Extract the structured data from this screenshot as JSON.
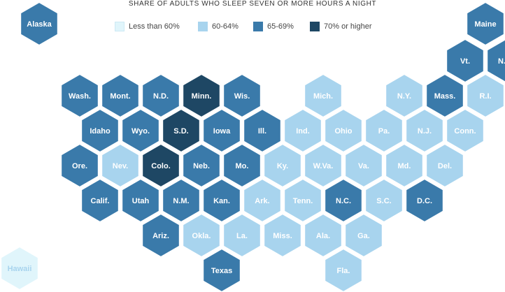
{
  "title": "SHARE OF ADULTS WHO SLEEP SEVEN OR MORE HOURS A NIGHT",
  "legend": [
    {
      "id": "lt60",
      "label": "Less than 60%",
      "color": "#e0f5fb"
    },
    {
      "id": "60-64",
      "label": "60-64%",
      "color": "#a8d4ee"
    },
    {
      "id": "65-69",
      "label": "65-69%",
      "color": "#3a7aaa"
    },
    {
      "id": "70plus",
      "label": "70% or higher",
      "color": "#1e4764"
    }
  ],
  "chart_data": {
    "type": "hexbin-map",
    "title": "SHARE OF ADULTS WHO SLEEP SEVEN OR MORE HOURS A NIGHT",
    "states": [
      {
        "label": "Alaska",
        "category": "65-69%",
        "col": 0,
        "row": 0
      },
      {
        "label": "Maine",
        "category": "65-69%",
        "col": 12,
        "row": 0
      },
      {
        "label": "Vt.",
        "category": "65-69%",
        "col": 10.5,
        "row": 1
      },
      {
        "label": "N.H.",
        "category": "65-69%",
        "col": 11.5,
        "row": 1
      },
      {
        "label": "Wash.",
        "category": "65-69%",
        "col": 1,
        "row": 2
      },
      {
        "label": "Mont.",
        "category": "65-69%",
        "col": 2,
        "row": 2
      },
      {
        "label": "N.D.",
        "category": "65-69%",
        "col": 3,
        "row": 2
      },
      {
        "label": "Minn.",
        "category": "70% or higher",
        "col": 4,
        "row": 2
      },
      {
        "label": "Wis.",
        "category": "65-69%",
        "col": 5,
        "row": 2
      },
      {
        "label": "Mich.",
        "category": "60-64%",
        "col": 7,
        "row": 2
      },
      {
        "label": "N.Y.",
        "category": "60-64%",
        "col": 9,
        "row": 2
      },
      {
        "label": "Mass.",
        "category": "65-69%",
        "col": 10,
        "row": 2
      },
      {
        "label": "R.I.",
        "category": "60-64%",
        "col": 11,
        "row": 2
      },
      {
        "label": "Idaho",
        "category": "65-69%",
        "col": 1.5,
        "row": 3
      },
      {
        "label": "Wyo.",
        "category": "65-69%",
        "col": 2.5,
        "row": 3
      },
      {
        "label": "S.D.",
        "category": "70% or higher",
        "col": 3.5,
        "row": 3
      },
      {
        "label": "Iowa",
        "category": "65-69%",
        "col": 4.5,
        "row": 3
      },
      {
        "label": "Ill.",
        "category": "65-69%",
        "col": 5.5,
        "row": 3
      },
      {
        "label": "Ind.",
        "category": "60-64%",
        "col": 6.5,
        "row": 3
      },
      {
        "label": "Ohio",
        "category": "60-64%",
        "col": 7.5,
        "row": 3
      },
      {
        "label": "Pa.",
        "category": "60-64%",
        "col": 8.5,
        "row": 3
      },
      {
        "label": "N.J.",
        "category": "60-64%",
        "col": 9.5,
        "row": 3
      },
      {
        "label": "Conn.",
        "category": "60-64%",
        "col": 10.5,
        "row": 3
      },
      {
        "label": "Ore.",
        "category": "65-69%",
        "col": 1,
        "row": 4
      },
      {
        "label": "Nev.",
        "category": "60-64%",
        "col": 2,
        "row": 4
      },
      {
        "label": "Colo.",
        "category": "70% or higher",
        "col": 3,
        "row": 4
      },
      {
        "label": "Neb.",
        "category": "65-69%",
        "col": 4,
        "row": 4
      },
      {
        "label": "Mo.",
        "category": "65-69%",
        "col": 5,
        "row": 4
      },
      {
        "label": "Ky.",
        "category": "60-64%",
        "col": 6,
        "row": 4
      },
      {
        "label": "W.Va.",
        "category": "60-64%",
        "col": 7,
        "row": 4
      },
      {
        "label": "Va.",
        "category": "60-64%",
        "col": 8,
        "row": 4
      },
      {
        "label": "Md.",
        "category": "60-64%",
        "col": 9,
        "row": 4
      },
      {
        "label": "Del.",
        "category": "60-64%",
        "col": 10,
        "row": 4
      },
      {
        "label": "Calif.",
        "category": "65-69%",
        "col": 1.5,
        "row": 5
      },
      {
        "label": "Utah",
        "category": "65-69%",
        "col": 2.5,
        "row": 5
      },
      {
        "label": "N.M.",
        "category": "65-69%",
        "col": 3.5,
        "row": 5
      },
      {
        "label": "Kan.",
        "category": "65-69%",
        "col": 4.5,
        "row": 5
      },
      {
        "label": "Ark.",
        "category": "60-64%",
        "col": 5.5,
        "row": 5
      },
      {
        "label": "Tenn.",
        "category": "60-64%",
        "col": 6.5,
        "row": 5
      },
      {
        "label": "N.C.",
        "category": "65-69%",
        "col": 7.5,
        "row": 5
      },
      {
        "label": "S.C.",
        "category": "60-64%",
        "col": 8.5,
        "row": 5
      },
      {
        "label": "D.C.",
        "category": "65-69%",
        "col": 9.5,
        "row": 5
      },
      {
        "label": "Ariz.",
        "category": "65-69%",
        "col": 3,
        "row": 6
      },
      {
        "label": "Okla.",
        "category": "60-64%",
        "col": 4,
        "row": 6
      },
      {
        "label": "La.",
        "category": "60-64%",
        "col": 5,
        "row": 6
      },
      {
        "label": "Miss.",
        "category": "60-64%",
        "col": 6,
        "row": 6
      },
      {
        "label": "Ala.",
        "category": "60-64%",
        "col": 7,
        "row": 6
      },
      {
        "label": "Ga.",
        "category": "60-64%",
        "col": 8,
        "row": 6
      },
      {
        "label": "Hawaii",
        "category": "Less than 60%",
        "col": 0,
        "row": 7
      },
      {
        "label": "Texas",
        "category": "65-69%",
        "col": 4.5,
        "row": 7
      },
      {
        "label": "Fla.",
        "category": "60-64%",
        "col": 7.5,
        "row": 7
      }
    ]
  }
}
